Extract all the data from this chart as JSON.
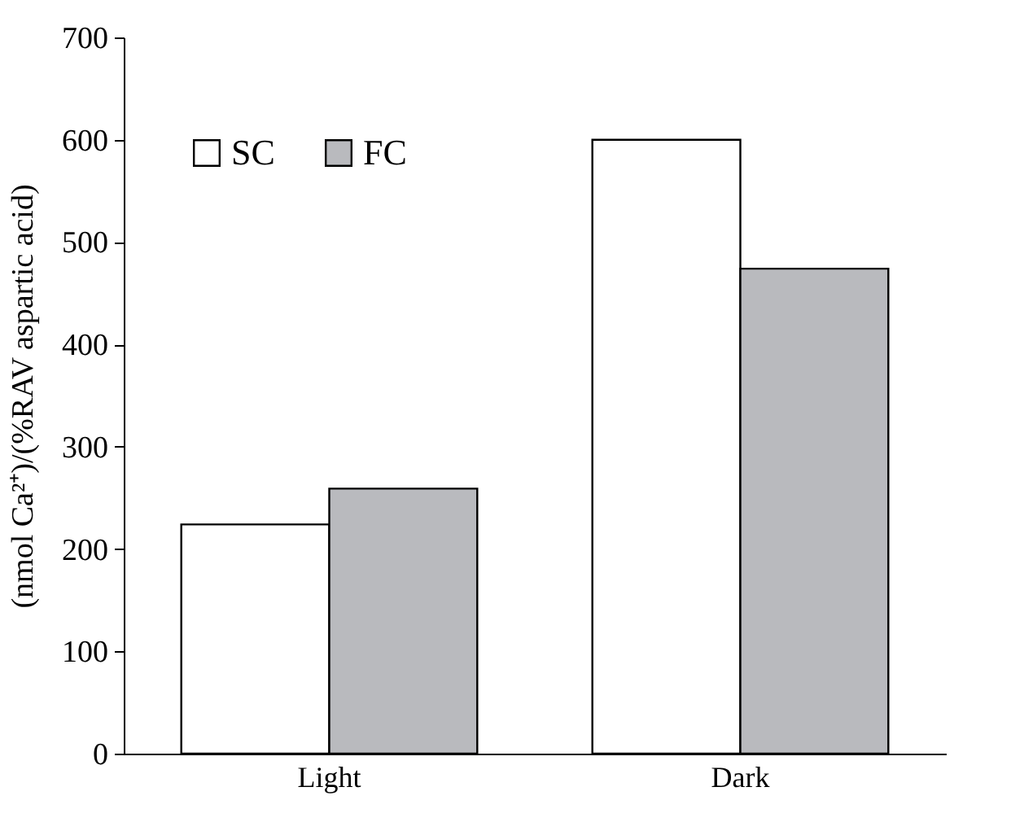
{
  "chart_data": {
    "type": "bar",
    "ylabel": "(nmol Ca²⁺)/(%RAV aspartic acid)",
    "categories": [
      "Light",
      "Dark"
    ],
    "series": [
      {
        "name": "SC",
        "color": "#ffffff",
        "values": [
          224,
          600
        ]
      },
      {
        "name": "FC",
        "color": "#b9babe",
        "values": [
          259,
          474
        ]
      }
    ],
    "ylim": [
      0,
      700
    ],
    "yticks": [
      0,
      100,
      200,
      300,
      400,
      500,
      600,
      700
    ],
    "grid": false,
    "legend": "top left"
  }
}
